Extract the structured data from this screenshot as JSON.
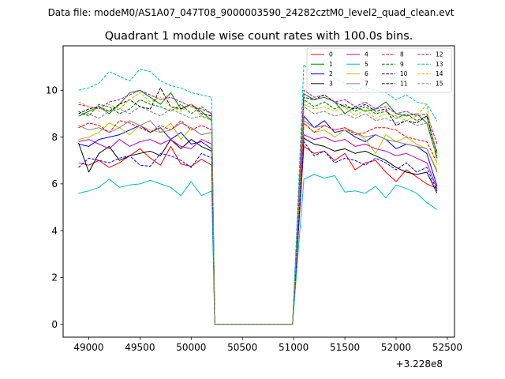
{
  "suptitle": "Data file: modeM0/AS1A07_047T08_9000003590_24282cztM0_level2_quad_clean.evt",
  "chart_data": {
    "type": "line",
    "title": "Quadrant 1 module wise count rates with 100.0s bins.",
    "xlabel": "",
    "ylabel": "",
    "x_offset_label": "+3.228e8",
    "xlim": [
      48750,
      52570
    ],
    "ylim": [
      -0.55,
      11.9
    ],
    "xticks": [
      49000,
      49500,
      50000,
      50500,
      51000,
      51500,
      52000,
      52500
    ],
    "xtick_labels": [
      "49000",
      "49500",
      "50000",
      "50500",
      "51000",
      "51500",
      "52000",
      "52500"
    ],
    "yticks": [
      0,
      2,
      4,
      6,
      8,
      10
    ],
    "ytick_labels": [
      "0",
      "2",
      "4",
      "6",
      "8",
      "10"
    ],
    "grid": false,
    "legend_placement": "top-right",
    "x": [
      48900,
      49000,
      49100,
      49200,
      49300,
      49400,
      49500,
      49600,
      49700,
      49800,
      49900,
      50000,
      50100,
      50200,
      50230,
      50300,
      50400,
      50500,
      50600,
      50700,
      50800,
      50900,
      50990,
      51100,
      51200,
      51300,
      51400,
      51500,
      51600,
      51700,
      51800,
      51900,
      52000,
      52100,
      52200,
      52300,
      52400
    ],
    "series": [
      {
        "name": "0",
        "color": "#ff0000",
        "dash": "solid",
        "values": [
          6.9,
          6.8,
          7.0,
          6.7,
          6.9,
          7.2,
          7.5,
          7.1,
          6.8,
          7.6,
          6.85,
          6.75,
          7.05,
          6.8,
          0.0,
          0.0,
          0.0,
          0.0,
          0.0,
          0.0,
          0.0,
          0.0,
          0.0,
          7.6,
          7.3,
          7.4,
          7.0,
          7.3,
          6.6,
          6.9,
          7.0,
          6.5,
          6.1,
          6.6,
          6.3,
          6.0,
          5.8
        ]
      },
      {
        "name": "1",
        "color": "#008000",
        "dash": "solid",
        "values": [
          8.9,
          9.1,
          9.3,
          9.0,
          9.4,
          9.9,
          10.0,
          9.7,
          9.4,
          9.9,
          9.2,
          9.4,
          9.1,
          8.7,
          0.0,
          0.0,
          0.0,
          0.0,
          0.0,
          0.0,
          0.0,
          0.0,
          0.0,
          9.85,
          9.6,
          9.7,
          9.5,
          9.0,
          9.3,
          9.1,
          9.2,
          9.5,
          9.0,
          8.9,
          9.0,
          8.6,
          7.1
        ]
      },
      {
        "name": "2",
        "color": "#0000ff",
        "dash": "solid",
        "values": [
          7.7,
          7.6,
          7.9,
          8.0,
          8.1,
          8.3,
          8.5,
          8.2,
          8.4,
          7.9,
          8.2,
          7.7,
          7.8,
          7.5,
          0.0,
          0.0,
          0.0,
          0.0,
          0.0,
          0.0,
          0.0,
          0.0,
          0.0,
          8.9,
          8.4,
          8.7,
          8.2,
          8.3,
          8.0,
          7.8,
          8.1,
          7.9,
          7.5,
          7.7,
          7.6,
          7.3,
          5.9
        ]
      },
      {
        "name": "3",
        "color": "#000000",
        "dash": "solid",
        "values": [
          7.75,
          6.5,
          7.3,
          7.6,
          7.0,
          7.2,
          7.3,
          7.4,
          7.2,
          7.9,
          7.5,
          7.9,
          7.6,
          7.4,
          0.0,
          0.0,
          0.0,
          0.0,
          0.0,
          0.0,
          0.0,
          0.0,
          0.0,
          7.95,
          7.7,
          7.6,
          7.4,
          7.5,
          7.3,
          7.4,
          7.2,
          7.0,
          6.7,
          6.5,
          6.4,
          6.5,
          5.6
        ]
      },
      {
        "name": "4",
        "color": "#bf00bf",
        "dash": "solid",
        "values": [
          7.8,
          7.9,
          7.7,
          7.5,
          7.9,
          7.6,
          7.8,
          7.9,
          7.7,
          7.9,
          7.6,
          7.5,
          7.9,
          7.7,
          0.0,
          0.0,
          0.0,
          0.0,
          0.0,
          0.0,
          0.0,
          0.0,
          0.0,
          8.1,
          7.9,
          8.0,
          7.8,
          7.9,
          7.6,
          7.7,
          7.5,
          7.4,
          7.2,
          7.3,
          7.1,
          6.9,
          5.8
        ]
      },
      {
        "name": "5",
        "color": "#00bfbf",
        "dash": "solid",
        "values": [
          5.6,
          5.7,
          5.85,
          6.2,
          5.85,
          5.95,
          6.0,
          6.15,
          6.0,
          5.85,
          5.5,
          6.1,
          5.5,
          5.7,
          0.0,
          0.0,
          0.0,
          0.0,
          0.0,
          0.0,
          0.0,
          0.0,
          0.0,
          6.2,
          6.4,
          6.25,
          6.35,
          5.65,
          5.7,
          5.6,
          5.9,
          5.4,
          5.95,
          5.8,
          5.6,
          5.2,
          4.9
        ]
      },
      {
        "name": "6",
        "color": "#bfbf00",
        "dash": "solid",
        "values": [
          7.9,
          8.0,
          8.2,
          8.6,
          8.4,
          8.1,
          8.5,
          8.3,
          8.2,
          8.6,
          7.9,
          8.4,
          8.1,
          8.2,
          0.0,
          0.0,
          0.0,
          0.0,
          0.0,
          0.0,
          0.0,
          0.0,
          0.0,
          8.6,
          8.2,
          8.3,
          8.0,
          8.3,
          8.2,
          7.9,
          7.3,
          8.1,
          7.8,
          8.0,
          7.7,
          7.5,
          6.6
        ]
      },
      {
        "name": "7",
        "color": "#808080",
        "dash": "solid",
        "values": [
          8.5,
          8.3,
          8.4,
          8.2,
          8.4,
          8.7,
          8.5,
          8.7,
          8.2,
          8.3,
          8.6,
          8.4,
          8.1,
          8.2,
          0.0,
          0.0,
          0.0,
          0.0,
          0.0,
          0.0,
          0.0,
          0.0,
          0.0,
          8.7,
          8.4,
          8.5,
          8.3,
          8.4,
          8.2,
          8.0,
          8.1,
          7.9,
          7.8,
          7.7,
          7.6,
          7.5,
          6.5
        ]
      },
      {
        "name": "8",
        "color": "#ff0000",
        "dash": "dashed",
        "values": [
          8.4,
          8.6,
          8.5,
          8.2,
          8.7,
          8.6,
          8.4,
          8.2,
          8.5,
          8.3,
          8.7,
          8.3,
          8.5,
          8.3,
          0.0,
          0.0,
          0.0,
          0.0,
          0.0,
          0.0,
          0.0,
          0.0,
          0.0,
          8.6,
          8.2,
          8.5,
          8.3,
          8.4,
          8.1,
          8.2,
          8.4,
          8.4,
          8.3,
          8.0,
          7.9,
          7.8,
          6.9
        ]
      },
      {
        "name": "9",
        "color": "#008000",
        "dash": "dashed",
        "values": [
          9.1,
          8.9,
          9.4,
          9.3,
          9.0,
          9.2,
          9.6,
          9.4,
          9.3,
          9.1,
          9.4,
          9.0,
          9.3,
          9.0,
          0.0,
          0.0,
          0.0,
          0.0,
          0.0,
          0.0,
          0.0,
          0.0,
          0.0,
          9.6,
          9.3,
          9.5,
          9.2,
          9.4,
          9.1,
          9.3,
          9.0,
          9.1,
          8.8,
          9.0,
          8.7,
          8.9,
          7.2
        ]
      },
      {
        "name": "10",
        "color": "#0000ff",
        "dash": "dashed",
        "values": [
          6.7,
          7.1,
          7.0,
          6.9,
          7.1,
          7.2,
          6.8,
          6.75,
          7.3,
          7.2,
          7.0,
          6.7,
          7.3,
          7.1,
          0.0,
          0.0,
          0.0,
          0.0,
          0.0,
          0.0,
          0.0,
          0.0,
          0.0,
          7.8,
          7.2,
          7.4,
          6.9,
          7.1,
          7.0,
          6.8,
          7.1,
          6.9,
          6.6,
          6.9,
          6.5,
          6.7,
          5.7
        ]
      },
      {
        "name": "11",
        "color": "#000000",
        "dash": "dashed",
        "values": [
          9.0,
          9.2,
          9.3,
          9.1,
          9.4,
          9.6,
          9.3,
          9.2,
          10.1,
          9.3,
          9.2,
          9.4,
          9.0,
          8.9,
          0.0,
          0.0,
          0.0,
          0.0,
          0.0,
          0.0,
          0.0,
          0.0,
          0.0,
          9.7,
          9.6,
          9.8,
          9.5,
          9.3,
          9.2,
          9.4,
          9.1,
          9.2,
          8.5,
          8.7,
          8.6,
          8.9,
          7.3
        ]
      },
      {
        "name": "12",
        "color": "#bf00bf",
        "dash": "dashed",
        "values": [
          9.4,
          9.3,
          9.2,
          9.5,
          9.6,
          9.8,
          10.0,
          9.8,
          9.6,
          9.7,
          9.5,
          9.3,
          9.2,
          9.0,
          0.0,
          0.0,
          0.0,
          0.0,
          0.0,
          0.0,
          0.0,
          0.0,
          0.0,
          10.0,
          9.7,
          9.8,
          9.5,
          9.6,
          9.3,
          9.5,
          9.2,
          9.3,
          9.0,
          9.1,
          8.9,
          9.0,
          7.7
        ]
      },
      {
        "name": "13",
        "color": "#00bfbf",
        "dash": "dashed",
        "values": [
          10.0,
          10.1,
          10.3,
          10.8,
          10.6,
          10.4,
          10.9,
          10.8,
          10.4,
          10.2,
          10.1,
          9.9,
          9.8,
          9.7,
          0.0,
          0.0,
          0.0,
          0.0,
          0.0,
          0.0,
          0.0,
          0.0,
          0.0,
          11.1,
          10.6,
          11.3,
          10.5,
          10.3,
          10.0,
          10.1,
          10.0,
          9.9,
          9.6,
          9.8,
          9.5,
          9.4,
          8.7
        ]
      },
      {
        "name": "14",
        "color": "#bfbf00",
        "dash": "dashed",
        "values": [
          9.5,
          9.3,
          9.1,
          9.4,
          9.2,
          9.6,
          9.9,
          9.5,
          9.7,
          9.3,
          9.1,
          9.4,
          8.9,
          8.8,
          0.0,
          0.0,
          0.0,
          0.0,
          0.0,
          0.0,
          0.0,
          0.0,
          0.0,
          9.4,
          9.2,
          9.3,
          9.1,
          9.3,
          8.9,
          9.2,
          8.8,
          9.0,
          8.9,
          8.7,
          8.9,
          9.4,
          6.8
        ]
      },
      {
        "name": "15",
        "color": "#808080",
        "dash": "dashed",
        "values": [
          8.9,
          9.0,
          8.8,
          9.1,
          9.2,
          9.0,
          9.3,
          9.1,
          8.9,
          9.2,
          9.0,
          8.8,
          8.9,
          8.7,
          0.0,
          0.0,
          0.0,
          0.0,
          0.0,
          0.0,
          0.0,
          0.0,
          0.0,
          9.3,
          9.0,
          9.1,
          8.9,
          9.0,
          8.8,
          9.0,
          8.7,
          8.8,
          8.6,
          8.7,
          8.5,
          8.6,
          7.4
        ]
      }
    ]
  }
}
